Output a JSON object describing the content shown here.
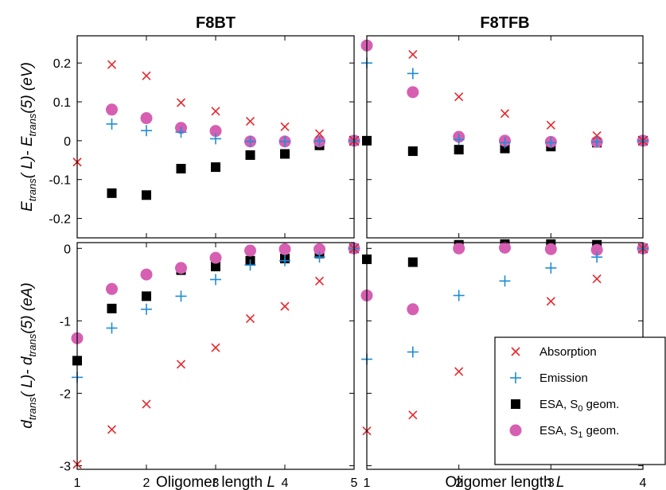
{
  "chart_data": [
    {
      "type": "scatter",
      "title": "F8BT",
      "panel": "top-left",
      "xlabel": "",
      "xlim": [
        1,
        5
      ],
      "ylim": [
        -0.25,
        0.27
      ],
      "yticks": [
        0.2,
        0.1,
        0,
        -0.1,
        -0.2
      ],
      "ytick_labels": [
        "0.2",
        "0.1",
        "0",
        "-0.1",
        "-0.2"
      ],
      "series": [
        {
          "key": "absorption",
          "x": [
            1,
            1.5,
            2,
            2.5,
            3,
            3.5,
            4,
            4.5,
            5
          ],
          "y": [
            -0.055,
            0.196,
            0.167,
            0.098,
            0.076,
            0.05,
            0.036,
            0.018,
            0
          ]
        },
        {
          "key": "emission",
          "x": [
            1.5,
            2,
            2.5,
            3,
            3.5,
            4,
            4.5,
            5
          ],
          "y": [
            0.043,
            0.026,
            0.022,
            0.005,
            -0.002,
            -0.002,
            -0.001,
            0
          ]
        },
        {
          "key": "esa_s0",
          "x": [
            1.5,
            2,
            2.5,
            3,
            3.5,
            4,
            4.5,
            5
          ],
          "y": [
            -0.135,
            -0.14,
            -0.072,
            -0.068,
            -0.037,
            -0.034,
            -0.012,
            0
          ]
        },
        {
          "key": "esa_s1",
          "x": [
            1.5,
            2,
            2.5,
            3,
            3.5,
            4,
            4.5,
            5
          ],
          "y": [
            0.08,
            0.058,
            0.033,
            0.025,
            -0.002,
            -0.002,
            -0.002,
            0
          ]
        }
      ]
    },
    {
      "type": "scatter",
      "title": "F8TFB",
      "panel": "top-right",
      "xlabel": "",
      "xlim": [
        1,
        4
      ],
      "ylim": [
        -0.25,
        0.27
      ],
      "series": [
        {
          "key": "absorption",
          "x": [
            1.5,
            2,
            2.5,
            3,
            3.5,
            4
          ],
          "y": [
            0.222,
            0.113,
            0.07,
            0.04,
            0.013,
            0
          ]
        },
        {
          "key": "emission",
          "x": [
            1,
            1.5,
            2,
            2.5,
            3,
            3.5,
            4
          ],
          "y": [
            0.2,
            0.173,
            0.003,
            -0.005,
            -0.005,
            -0.003,
            0
          ]
        },
        {
          "key": "esa_s0",
          "x": [
            1,
            1.5,
            2,
            2.5,
            3,
            3.5,
            4
          ],
          "y": [
            0,
            -0.027,
            -0.023,
            -0.02,
            -0.015,
            -0.005,
            0
          ]
        },
        {
          "key": "esa_s1",
          "x": [
            1,
            1.5,
            2,
            2.5,
            3,
            3.5,
            4
          ],
          "y": [
            0.245,
            0.125,
            0.01,
            0,
            -0.003,
            -0.003,
            0
          ]
        }
      ]
    },
    {
      "type": "scatter",
      "title": "",
      "panel": "bottom-left",
      "xlabel": "Oligomer length  L",
      "xlim": [
        1,
        5
      ],
      "xticks": [
        1,
        2,
        3,
        4,
        5
      ],
      "xtick_labels": [
        "1",
        "2",
        "3",
        "4",
        "5"
      ],
      "ylim": [
        -3.05,
        0.08
      ],
      "yticks": [
        0,
        -1,
        -2,
        -3
      ],
      "ytick_labels": [
        "0",
        "-1",
        "-2",
        "-3"
      ],
      "series": [
        {
          "key": "absorption",
          "x": [
            1,
            1.5,
            2,
            2.5,
            3,
            3.5,
            4,
            4.5,
            5
          ],
          "y": [
            -2.98,
            -2.5,
            -2.15,
            -1.6,
            -1.37,
            -0.97,
            -0.8,
            -0.45,
            0
          ]
        },
        {
          "key": "emission",
          "x": [
            1,
            1.5,
            2,
            2.5,
            3,
            3.5,
            4,
            4.5,
            5
          ],
          "y": [
            -1.78,
            -1.1,
            -0.84,
            -0.66,
            -0.43,
            -0.23,
            -0.17,
            -0.12,
            0
          ]
        },
        {
          "key": "esa_s0",
          "x": [
            1,
            1.5,
            2,
            2.5,
            3,
            3.5,
            4,
            4.5,
            5
          ],
          "y": [
            -1.55,
            -0.83,
            -0.66,
            -0.3,
            -0.25,
            -0.17,
            -0.14,
            -0.07,
            0
          ]
        },
        {
          "key": "esa_s1",
          "x": [
            1,
            1.5,
            2,
            2.5,
            3,
            3.5,
            4,
            4.5,
            5
          ],
          "y": [
            -1.24,
            -0.56,
            -0.36,
            -0.27,
            -0.13,
            -0.03,
            -0.01,
            -0.01,
            0
          ]
        }
      ]
    },
    {
      "type": "scatter",
      "title": "",
      "panel": "bottom-right",
      "xlabel": "Oligomer length  L",
      "xlim": [
        1,
        4
      ],
      "xticks": [
        1,
        2,
        3,
        4
      ],
      "xtick_labels": [
        "1",
        "2",
        "3",
        "4"
      ],
      "ylim": [
        -3.05,
        0.08
      ],
      "series": [
        {
          "key": "absorption",
          "x": [
            1,
            1.5,
            2,
            2.5,
            3,
            3.5,
            4
          ],
          "y": [
            -2.52,
            -2.3,
            -1.7,
            -1.35,
            -0.73,
            -0.42,
            0
          ]
        },
        {
          "key": "emission",
          "x": [
            1,
            1.5,
            2,
            2.5,
            3,
            3.5,
            4
          ],
          "y": [
            -1.53,
            -1.43,
            -0.65,
            -0.45,
            -0.27,
            -0.12,
            0
          ]
        },
        {
          "key": "esa_s0",
          "x": [
            1,
            1.5,
            2,
            2.5,
            3,
            3.5,
            4
          ],
          "y": [
            -0.15,
            -0.19,
            0.05,
            0.06,
            0.06,
            0.05,
            0
          ]
        },
        {
          "key": "esa_s1",
          "x": [
            1,
            1.5,
            2,
            2.5,
            3,
            3.5,
            4
          ],
          "y": [
            -0.65,
            -0.84,
            0,
            0.01,
            -0.01,
            -0.02,
            0
          ]
        }
      ]
    }
  ],
  "legend": {
    "placement": "bottom-right",
    "items": [
      {
        "key": "absorption",
        "label": "Absorption",
        "marker": "x",
        "color": "#e8262b"
      },
      {
        "key": "emission",
        "label": "Emission",
        "marker": "+",
        "color": "#1f8dd6"
      },
      {
        "key": "esa_s0",
        "label": "ESA, S",
        "sub": "0",
        "suffix": " geom.",
        "marker": "square",
        "color": "#000000"
      },
      {
        "key": "esa_s1",
        "label": "ESA, S",
        "sub": "1",
        "suffix": " geom.",
        "marker": "circle",
        "color": "#d65fb2"
      }
    ]
  },
  "ylabels": {
    "top": {
      "main": "E",
      "sub1": "trans",
      "mid": "( L)- E",
      "sub2": "trans",
      "tail": "(5) (eV)"
    },
    "bottom": {
      "main": "d",
      "sub1": "trans",
      "mid": "( L)- d",
      "sub2": "trans",
      "tail": "(5) (eA)"
    }
  }
}
